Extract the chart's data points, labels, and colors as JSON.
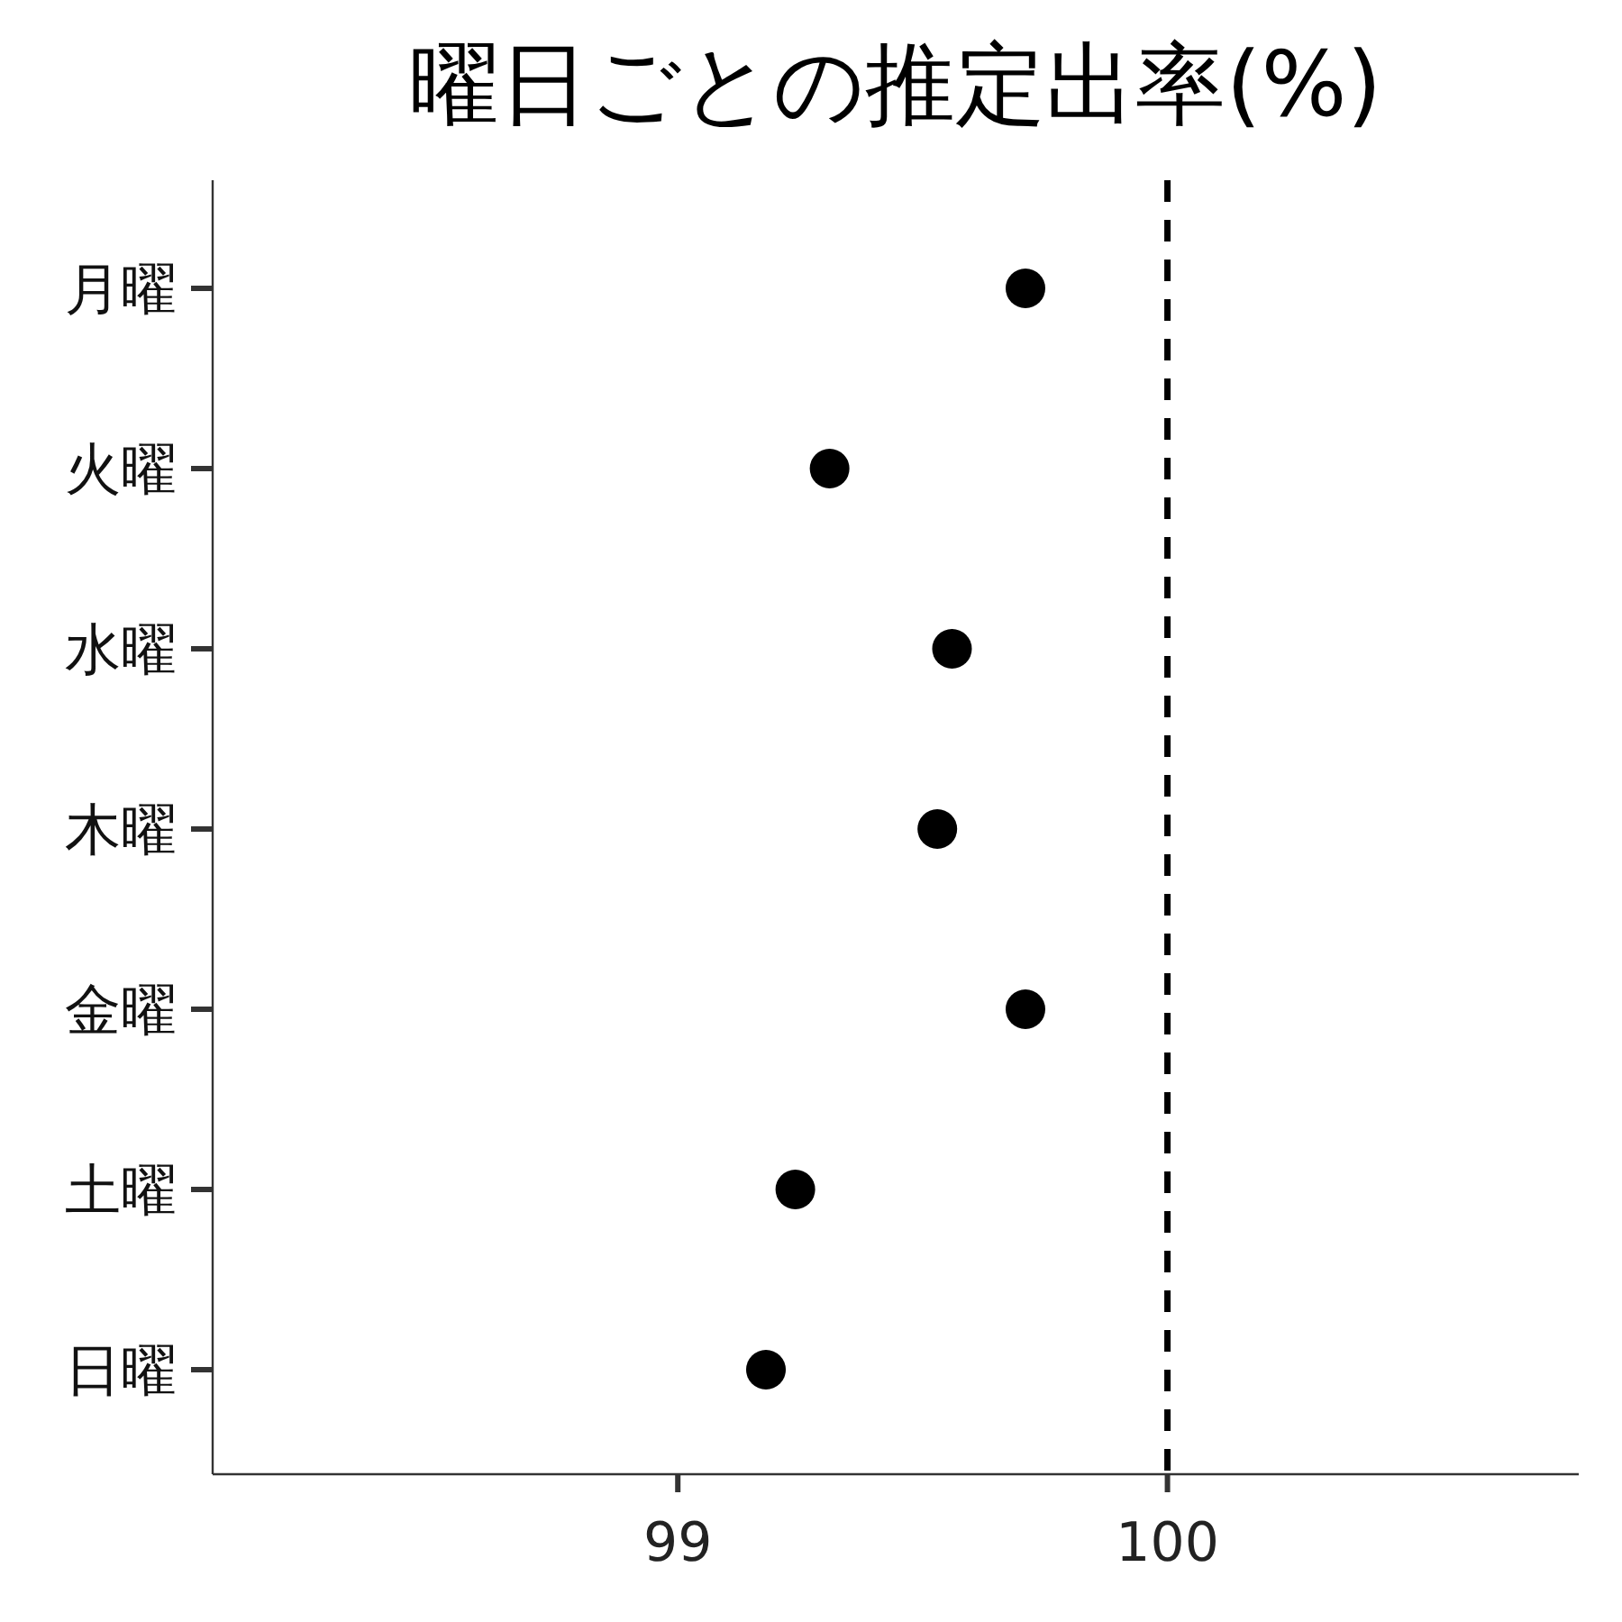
{
  "chart_data": {
    "type": "scatter",
    "title": "曜日ごとの推定出率(%)",
    "orientation": "horizontal",
    "categories": [
      "月曜",
      "火曜",
      "水曜",
      "木曜",
      "金曜",
      "土曜",
      "日曜"
    ],
    "series": [
      {
        "color": "#000000",
        "values": [
          99.71,
          99.31,
          99.56,
          99.53,
          99.71,
          99.24,
          99.18
        ]
      }
    ],
    "xlim": [
      98.05,
      100.84
    ],
    "xticks": [
      99,
      100
    ],
    "marker": "circle",
    "grid": false,
    "ref_lines": [
      {
        "axis": "x",
        "value": 100,
        "color": "#000000",
        "line_style": "dashed"
      }
    ]
  }
}
